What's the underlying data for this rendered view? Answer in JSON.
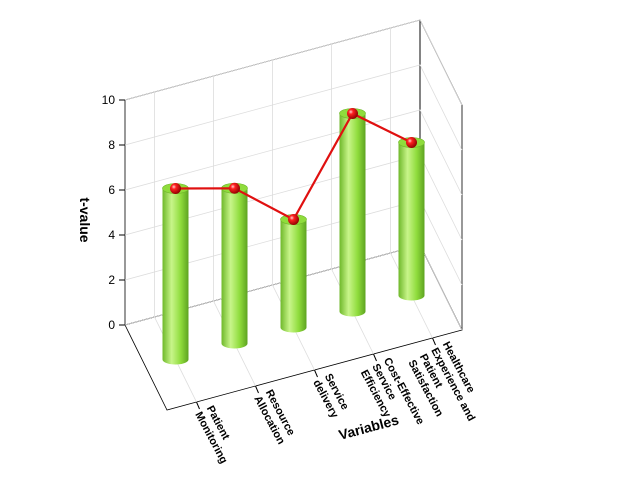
{
  "chart_data": {
    "type": "bar3d",
    "x_label": "Variables",
    "y_label": "t-value",
    "categories": [
      "Patient Monitoring",
      "Resource Allocation",
      "Service delivery",
      "Cost-Effective Service Efficiency",
      "Healthcare Experience and Patient Satisfaction"
    ],
    "values": [
      7.6,
      6.9,
      4.8,
      8.8,
      6.8
    ],
    "color": "#8fdc3c",
    "line_color": "#e01010",
    "ylim": [
      0,
      10
    ],
    "yticks": [
      0,
      2,
      4,
      6,
      8,
      10
    ],
    "grid": true
  }
}
